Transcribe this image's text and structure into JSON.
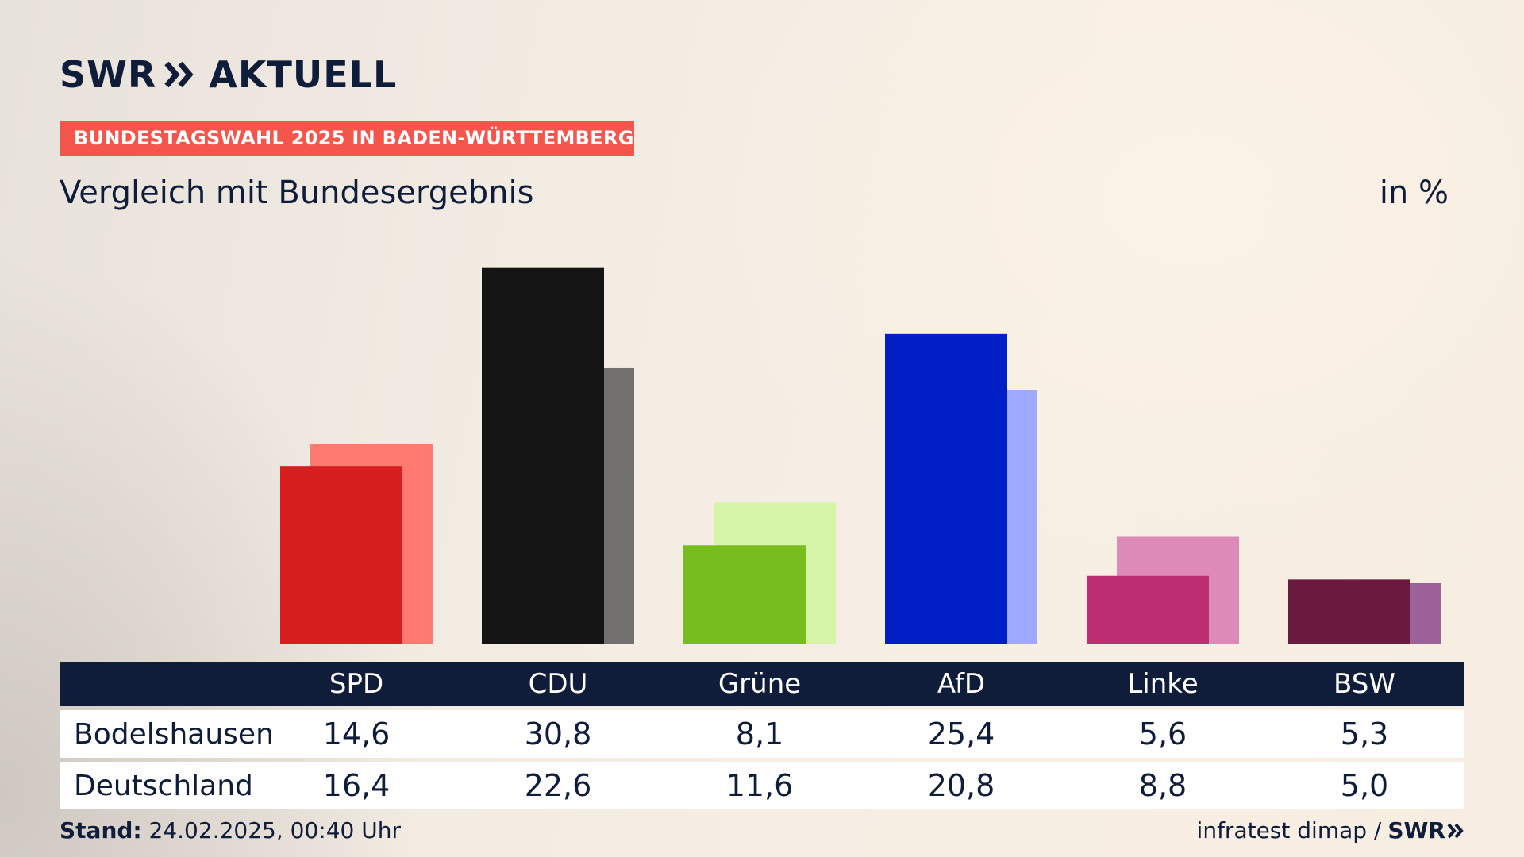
{
  "header": {
    "logo_left": "SWR",
    "logo_right": "AKTUELL",
    "banner": "BUNDESTAGSWAHL 2025 IN BADEN-WÜRTTEMBERG",
    "subtitle": "Vergleich mit Bundesergebnis",
    "unit": "in %"
  },
  "colors": {
    "navy": "#0f1d3a",
    "banner": "#f4564b",
    "primary": [
      "#d81f1f",
      "#141414",
      "#78bd1e",
      "#0020c6",
      "#be2e73",
      "#6a1a3e"
    ],
    "secondary": [
      "#ff7a70",
      "#737070",
      "#d6f5a9",
      "#9fa9ff",
      "#de8ab8",
      "#9c6198"
    ]
  },
  "chart_data": {
    "type": "bar",
    "categories": [
      "SPD",
      "CDU",
      "Grüne",
      "AfD",
      "Linke",
      "BSW"
    ],
    "series": [
      {
        "name": "Bodelshausen",
        "values": [
          14.6,
          30.8,
          8.1,
          25.4,
          5.6,
          5.3
        ]
      },
      {
        "name": "Deutschland",
        "values": [
          16.4,
          22.6,
          11.6,
          20.8,
          8.8,
          5.0
        ]
      }
    ],
    "display": {
      "Bodelshausen": [
        "14,6",
        "30,8",
        "8,1",
        "25,4",
        "5,6",
        "5,3"
      ],
      "Deutschland": [
        "16,4",
        "22,6",
        "11,6",
        "20,8",
        "8,8",
        "5,0"
      ]
    }
  },
  "table": {
    "row_labels": [
      "Bodelshausen",
      "Deutschland"
    ]
  },
  "footer": {
    "stand_label": "Stand:",
    "stand_value": "24.02.2025, 00:40 Uhr",
    "source": "infratest dimap /",
    "brand": "SWR"
  }
}
